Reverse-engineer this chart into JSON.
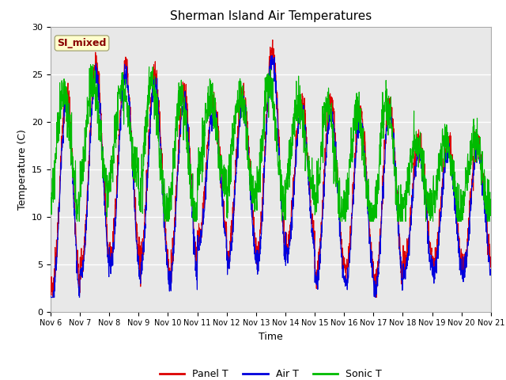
{
  "title": "Sherman Island Air Temperatures",
  "xlabel": "Time",
  "ylabel": "Temperature (C)",
  "ylim": [
    0,
    30
  ],
  "background_color": "#e8e8e8",
  "fig_background": "#ffffff",
  "panel_color": "#dd0000",
  "air_color": "#0000dd",
  "sonic_color": "#00bb00",
  "annotation_text": "SI_mixed",
  "annotation_bg": "#ffffcc",
  "annotation_fg": "#880000",
  "xtick_labels": [
    "Nov 6",
    "Nov 7",
    "Nov 8",
    "Nov 9",
    "Nov 10",
    "Nov 11",
    "Nov 12",
    "Nov 13",
    "Nov 14",
    "Nov 15",
    "Nov 16",
    "Nov 17",
    "Nov 18",
    "Nov 19",
    "Nov 20",
    "Nov 21"
  ],
  "legend_labels": [
    "Panel T",
    "Air T",
    "Sonic T"
  ]
}
